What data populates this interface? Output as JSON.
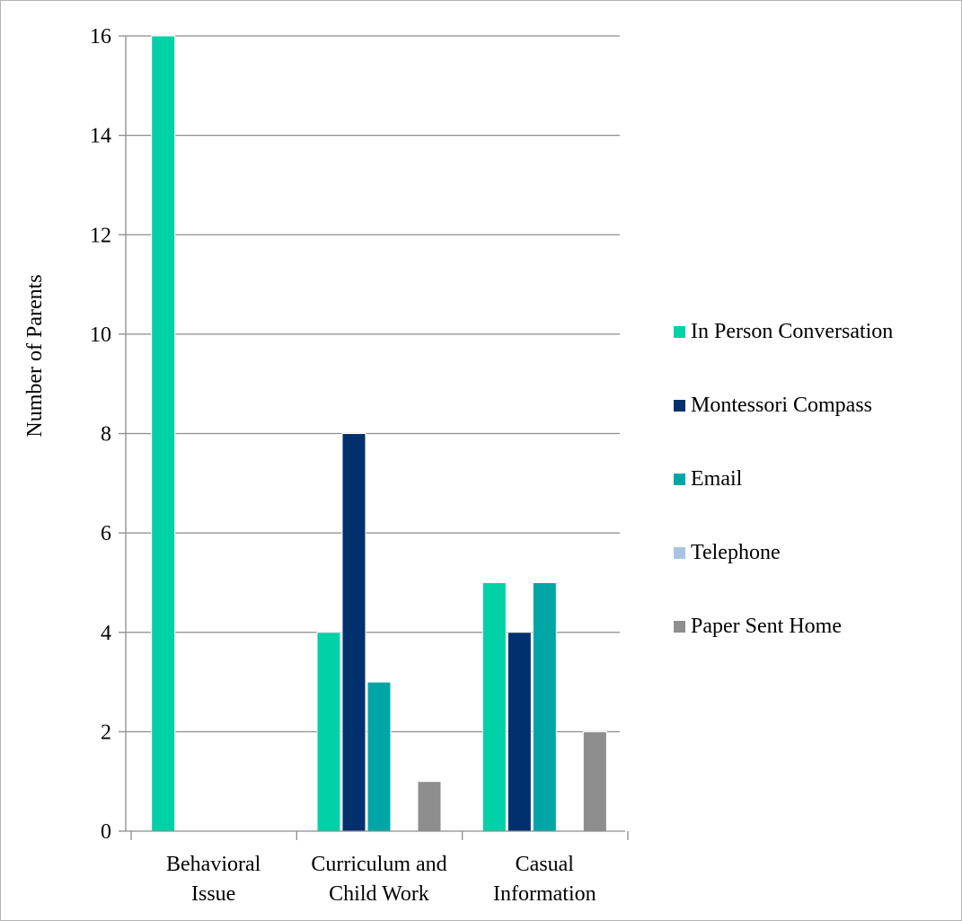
{
  "chart_data": {
    "type": "bar",
    "title": "",
    "xlabel": "",
    "ylabel": "Number of Parents",
    "ylim": [
      0,
      16
    ],
    "yticks": [
      0,
      2,
      4,
      6,
      8,
      10,
      12,
      14,
      16
    ],
    "grid": true,
    "legend_position": "right",
    "categories": [
      [
        "Behavioral",
        "Issue"
      ],
      [
        "Curriculum and",
        "Child Work"
      ],
      [
        "Casual",
        "Information"
      ]
    ],
    "series": [
      {
        "name": "In Person Conversation",
        "color": "#00d1a6",
        "values": [
          16,
          4,
          5
        ]
      },
      {
        "name": "Montessori Compass",
        "color": "#00306e",
        "values": [
          0,
          8,
          4
        ]
      },
      {
        "name": "Email",
        "color": "#00a6a6",
        "values": [
          0,
          3,
          5
        ]
      },
      {
        "name": "Telephone",
        "color": "#a9c3e3",
        "values": [
          0,
          0,
          0
        ]
      },
      {
        "name": "Paper Sent Home",
        "color": "#8e8e8e",
        "values": [
          0,
          1,
          2
        ]
      }
    ]
  }
}
